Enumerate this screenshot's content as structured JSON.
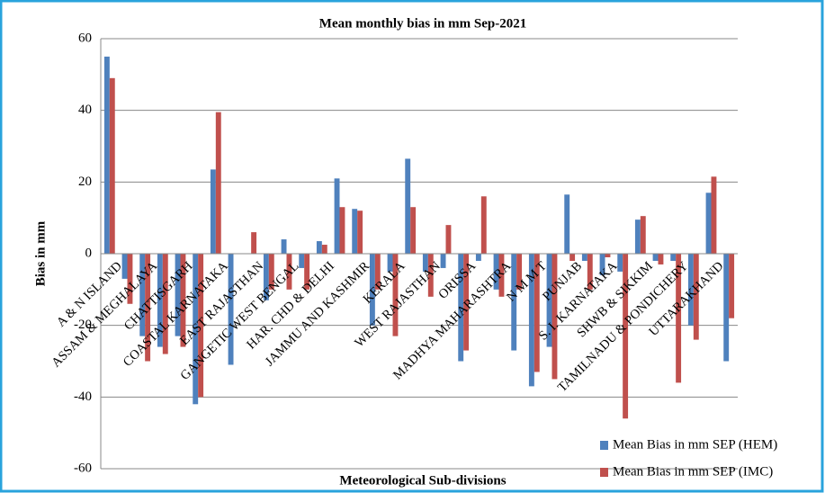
{
  "chart_data": {
    "type": "bar",
    "title": "Mean monthly bias in mm Sep-2021",
    "x_label": "Meteorological Sub-divisions",
    "y_label": "Bias in mm",
    "categories": [
      "A & N ISLAND",
      null,
      "ASSAM & MEGHALAYA",
      null,
      "CHATTISGARH",
      null,
      "COASTAL KARNATAKA",
      null,
      "EAST RAJASTHAN",
      null,
      "GANGETIC WEST BENGAL",
      null,
      "HAR. CHD & DELHI",
      null,
      "JAMMU AND KASHMIR",
      null,
      "KERALA",
      null,
      "WEST RAJASTHAN",
      null,
      "ORISSA",
      null,
      "MADHYA MAHARASHTRA",
      null,
      "N M M T",
      null,
      "PUNJAB",
      null,
      "S. I. KARNATAKA",
      null,
      "SHWB & SIKKIM",
      null,
      "TAMILNADU & PONDICHERY",
      null,
      "UTTARAKHAND",
      null
    ],
    "series": [
      {
        "name": "Mean Bias in mm SEP (HEM)",
        "color": "#4f81bd",
        "values": [
          55,
          -7,
          -23,
          -26,
          -23,
          -42,
          23.5,
          -31,
          0,
          -13,
          4,
          -4,
          3.5,
          21,
          12.5,
          -20,
          -5,
          26.5,
          -5,
          -4,
          -30,
          -2,
          -10,
          -27,
          -37,
          -26,
          16.5,
          -2,
          -6,
          -5,
          9.5,
          -2,
          -2,
          -20,
          17,
          -30
        ]
      },
      {
        "name": "Mean Bias in mm SEP (IMC)",
        "color": "#c0504d",
        "values": [
          49,
          -14,
          -30,
          -28,
          -26,
          -40,
          39.5,
          0,
          6,
          -10,
          -10,
          -10,
          2.5,
          13,
          12,
          -10,
          -23,
          13,
          -12,
          8,
          -27,
          16,
          -12,
          -10,
          -33,
          -35,
          -2,
          -10,
          -1,
          -46,
          10.5,
          -3,
          -36,
          -24,
          21.5,
          -18
        ]
      }
    ],
    "ylim": [
      -60,
      60
    ],
    "yticks": [
      -60,
      -40,
      -20,
      0,
      20,
      40,
      60
    ],
    "grid": true,
    "legend": "bottom-right"
  }
}
